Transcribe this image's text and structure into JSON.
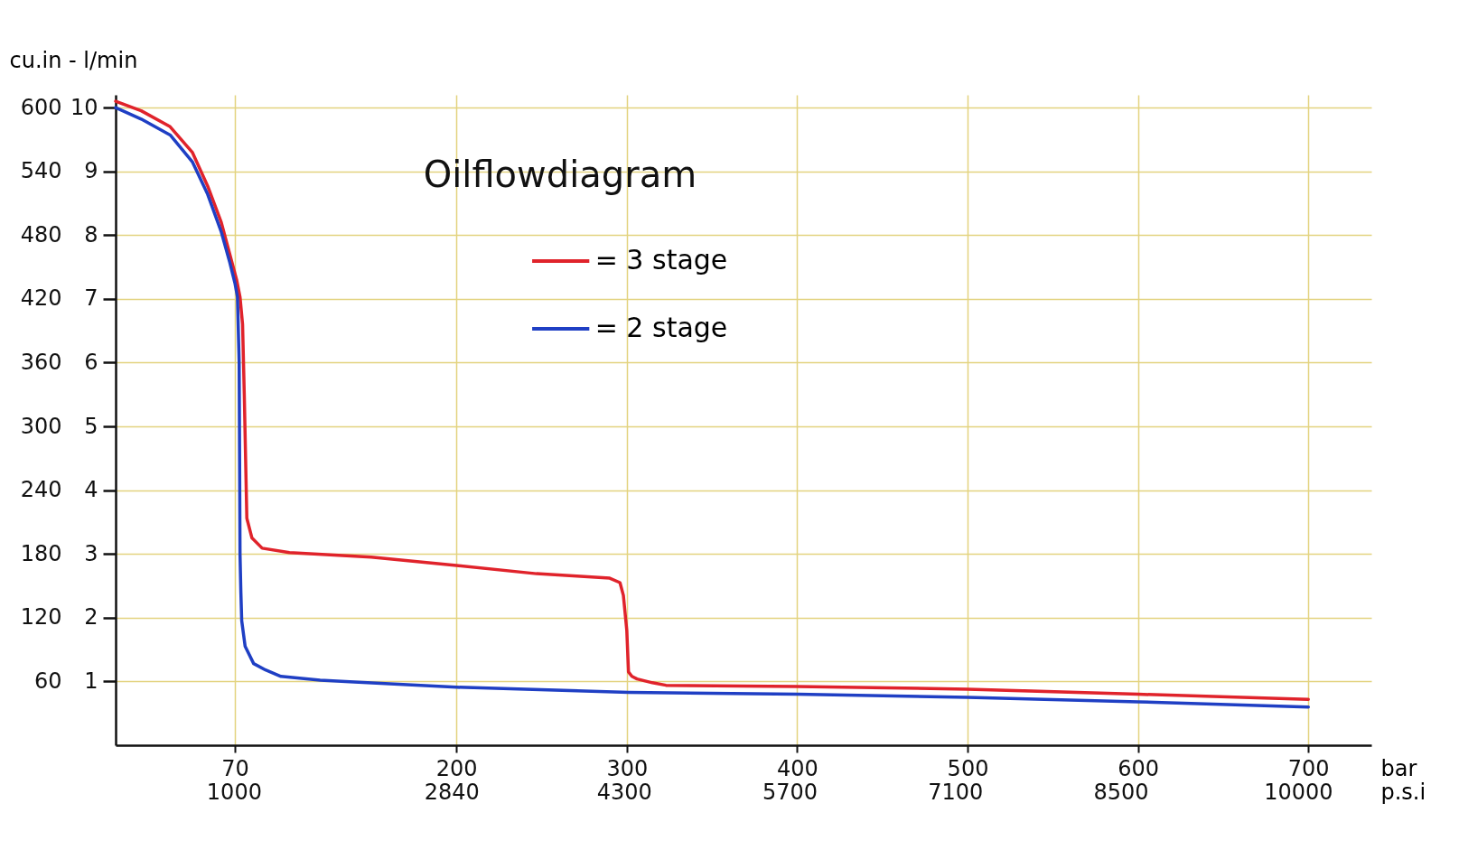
{
  "chart_data": {
    "type": "line",
    "title": "Oilflowdiagram",
    "ylabel": "cu.in - l/min",
    "xlabel": "bar",
    "x2label": "p.s.i",
    "xlim": [
      0,
      737
    ],
    "xticks": [
      70,
      200,
      300,
      400,
      500,
      600,
      700
    ],
    "x2lim": [
      0,
      10620
    ],
    "x2ticks": [
      1000,
      2840,
      4300,
      5700,
      7100,
      8500,
      10000
    ],
    "ylim": [
      0,
      10.2
    ],
    "yticks": [
      1,
      2,
      3,
      4,
      5,
      6,
      7,
      8,
      9,
      10
    ],
    "y2lim": [
      0,
      612
    ],
    "y2ticks": [
      60,
      120,
      180,
      240,
      300,
      360,
      420,
      480,
      540,
      600
    ],
    "grid": true,
    "legend": "top",
    "line_style": "solid",
    "marker": "none",
    "series": [
      {
        "name": "= 3 stage",
        "color": "#e0232b",
        "x": [
          0,
          15,
          32,
          45,
          54,
          62,
          67,
          71,
          73,
          74.5,
          75.5,
          77,
          80,
          86,
          102,
          150,
          200,
          247,
          290,
          296,
          298,
          300,
          301,
          303,
          306,
          315,
          323,
          400,
          500,
          600,
          700
        ],
        "values": [
          10.1,
          9.95,
          9.7,
          9.3,
          8.77,
          8.2,
          7.7,
          7.3,
          7.03,
          6.6,
          5.5,
          3.56,
          3.25,
          3.09,
          3.02,
          2.95,
          2.82,
          2.69,
          2.62,
          2.55,
          2.35,
          1.8,
          1.15,
          1.08,
          1.04,
          0.98,
          0.94,
          0.92,
          0.88,
          0.8,
          0.72
        ]
      },
      {
        "name": "= 2 stage",
        "color": "#1f3fc4",
        "x": [
          0,
          15,
          32,
          45,
          54,
          62,
          67,
          70,
          71.5,
          72.5,
          73,
          73.5,
          74,
          76,
          81,
          88,
          97,
          120,
          140,
          200,
          301,
          400,
          500,
          600,
          700
        ],
        "values": [
          10.0,
          9.82,
          9.57,
          9.15,
          8.64,
          8.05,
          7.57,
          7.25,
          7.03,
          6.0,
          3.0,
          2.4,
          1.95,
          1.55,
          1.28,
          1.18,
          1.08,
          1.02,
          0.99,
          0.91,
          0.83,
          0.8,
          0.75,
          0.68,
          0.6
        ]
      }
    ]
  }
}
